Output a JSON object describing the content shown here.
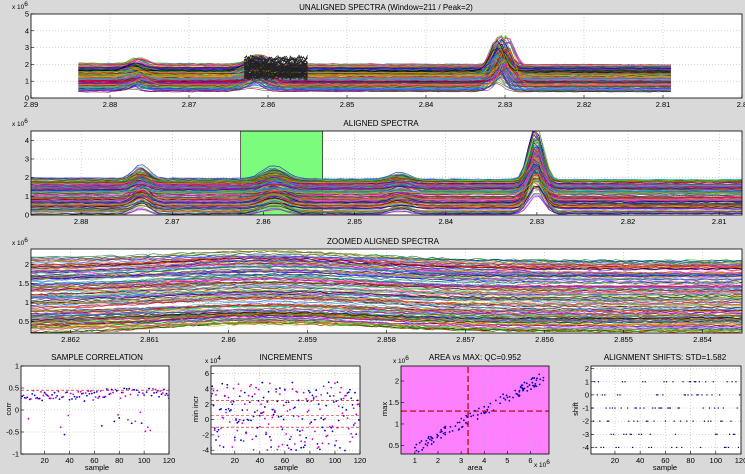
{
  "figure": {
    "background": "#d9d9d9",
    "plot_bg": "#ffffff",
    "highlight_green": "#7CFC7C",
    "highlight_magenta": "#ff80ff"
  },
  "chart_data": [
    {
      "id": "unaligned",
      "type": "line",
      "title": "UNALIGNED SPECTRA (Window=211 / Peak=2)",
      "xlabel": "",
      "ylabel": "",
      "x_reversed": true,
      "xlim": [
        2.8,
        2.89
      ],
      "xticks": [
        2.89,
        2.88,
        2.87,
        2.86,
        2.85,
        2.84,
        2.83,
        2.82,
        2.81,
        2.8
      ],
      "ylim": [
        0,
        5
      ],
      "yticks": [
        0,
        1,
        2,
        3,
        4,
        5
      ],
      "y_exponent": "x 10",
      "y_exponent_power": "6",
      "grid": true,
      "spectra_range": [
        2.809,
        2.884
      ],
      "n_series": 170,
      "baseline_range": [
        0.35,
        2.0
      ],
      "peaks": [
        {
          "x": 2.8305,
          "height": 1.6,
          "width": 0.0012
        },
        {
          "x": 2.8767,
          "height": 0.35,
          "width": 0.0012
        },
        {
          "x": 2.8615,
          "height": 0.55,
          "width": 0.0016
        }
      ],
      "dark_cluster": {
        "x_range": [
          2.855,
          2.863
        ],
        "y_range": [
          1.2,
          2.4
        ],
        "color": "#222222"
      }
    },
    {
      "id": "aligned",
      "type": "line",
      "title": "ALIGNED SPECTRA",
      "xlabel": "",
      "ylabel": "",
      "x_reversed": true,
      "xlim": [
        2.8075,
        2.8855
      ],
      "xticks": [
        2.88,
        2.87,
        2.86,
        2.85,
        2.84,
        2.83,
        2.82,
        2.81
      ],
      "ylim": [
        0,
        4.5
      ],
      "yticks": [
        0,
        1,
        2,
        3,
        4
      ],
      "y_exponent": "x 10",
      "y_exponent_power": "6",
      "grid": true,
      "highlight_window": [
        2.8535,
        2.8625
      ],
      "n_series": 170,
      "baseline_range": [
        0.05,
        1.9
      ],
      "peaks": [
        {
          "x": 2.8301,
          "height": 2.3,
          "width": 0.0011
        },
        {
          "x": 2.8734,
          "height": 0.6,
          "width": 0.0012
        },
        {
          "x": 2.8588,
          "height": 0.55,
          "width": 0.0018
        },
        {
          "x": 2.845,
          "height": 0.3,
          "width": 0.0015
        }
      ]
    },
    {
      "id": "zoomed",
      "type": "line",
      "title": "ZOOMED ALIGNED SPECTRA",
      "xlabel": "",
      "ylabel": "",
      "x_reversed": true,
      "xlim": [
        2.8535,
        2.8625
      ],
      "xticks": [
        2.862,
        2.861,
        2.86,
        2.859,
        2.858,
        2.857,
        2.856,
        2.855,
        2.854
      ],
      "ylim": [
        0.2,
        2.4
      ],
      "yticks": [
        0.5,
        1,
        1.5,
        2
      ],
      "y_exponent": "x 10",
      "y_exponent_power": "6",
      "grid": true,
      "n_series": 170,
      "baseline_range": [
        0.3,
        2.2
      ],
      "bump_center": 2.8595,
      "bump_width": 0.0018
    },
    {
      "id": "correlation",
      "type": "scatter",
      "title": "SAMPLE CORRELATION",
      "xlabel": "sample",
      "ylabel": "corr",
      "xlim": [
        1,
        120
      ],
      "xticks": [
        20,
        40,
        60,
        80,
        100,
        120
      ],
      "ylim": [
        -1,
        1
      ],
      "yticks": [
        -1,
        -0.5,
        0,
        0.5,
        1
      ],
      "grid": true,
      "markers": [
        "#0000cc",
        "#cc00cc"
      ],
      "refline": {
        "value": 0.45,
        "color": "#cc0000"
      },
      "level_before": 0.32,
      "level_after": 0.38,
      "spread": 0.12
    },
    {
      "id": "increments",
      "type": "scatter",
      "title": "INCREMENTS",
      "xlabel": "sample",
      "ylabel": "min incr",
      "xlim": [
        1,
        120
      ],
      "xticks": [
        20,
        40,
        60,
        80,
        100,
        120
      ],
      "ylim": [
        -4.5,
        7
      ],
      "yticks": [
        -4,
        -2,
        0,
        2,
        4,
        6
      ],
      "y_exponent": "x 10",
      "y_exponent_power": "4",
      "grid": true,
      "markers": [
        "#0000cc",
        "#cc00cc"
      ],
      "reflines": [
        {
          "value": 2.5,
          "color": "#cc0000"
        },
        {
          "value": 0.5,
          "color": "#cc0000"
        },
        {
          "value": -1.0,
          "color": "#cc0000"
        }
      ]
    },
    {
      "id": "areamax",
      "type": "scatter",
      "title": "AREA vs MAX: QC=0.952",
      "xlabel": "area",
      "ylabel": "max",
      "xlim": [
        0.4,
        6.8
      ],
      "xticks": [
        1,
        2,
        3,
        4,
        5,
        6
      ],
      "ylim": [
        0.3,
        2.35
      ],
      "yticks": [
        0.5,
        1,
        1.5,
        2
      ],
      "x_exponent": "x 10",
      "x_exponent_power": "6",
      "y_exponent": "x 10",
      "y_exponent_power": "6",
      "grid": true,
      "background": "#ff80ff",
      "marker_color": "#0000aa",
      "crosshair": {
        "x": 3.3,
        "y": 1.3,
        "color": "#aa0000"
      },
      "trend": {
        "x0": 1.0,
        "y0": 0.42,
        "slope": 0.3
      }
    },
    {
      "id": "shifts",
      "type": "scatter",
      "title": "ALIGNMENT SHIFTS: STD=1.582",
      "xlabel": "sample",
      "ylabel": "shift",
      "xlim": [
        1,
        120
      ],
      "xticks": [
        20,
        40,
        60,
        80,
        100,
        120
      ],
      "ylim": [
        -4.5,
        2.2
      ],
      "yticks": [
        -4,
        -3,
        -2,
        -1,
        0,
        1,
        2
      ],
      "grid": true,
      "marker_color": "#000066",
      "levels": [
        1,
        0,
        -1,
        -2,
        -3,
        -4
      ]
    }
  ]
}
